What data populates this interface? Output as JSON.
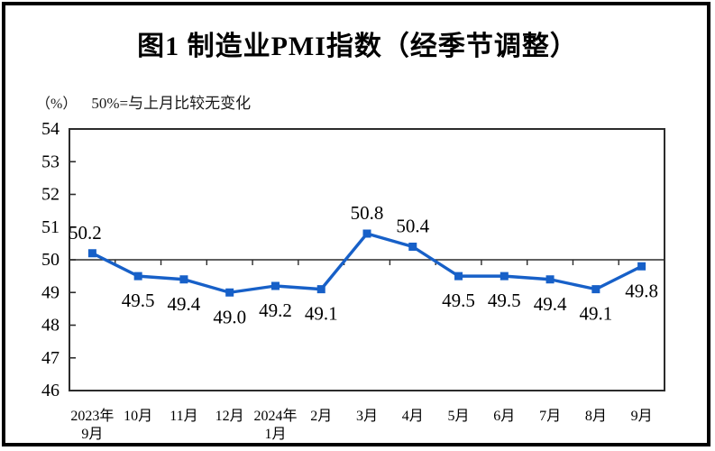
{
  "chart_data": {
    "type": "line",
    "title": "图1 制造业PMI指数（经季节调整）",
    "unit_label": "（%）",
    "subtitle": "50%=与上月比较无变化",
    "categories": [
      [
        "2023年",
        "9月"
      ],
      [
        "10月"
      ],
      [
        "11月"
      ],
      [
        "12月"
      ],
      [
        "2024年",
        "1月"
      ],
      [
        "2月"
      ],
      [
        "3月"
      ],
      [
        "4月"
      ],
      [
        "5月"
      ],
      [
        "6月"
      ],
      [
        "7月"
      ],
      [
        "8月"
      ],
      [
        "9月"
      ]
    ],
    "values": [
      50.2,
      49.5,
      49.4,
      49.0,
      49.2,
      49.1,
      50.8,
      50.4,
      49.5,
      49.5,
      49.4,
      49.1,
      49.8
    ],
    "value_label_side": [
      "above",
      "below",
      "below",
      "below",
      "below",
      "below",
      "above",
      "above",
      "below",
      "below",
      "below",
      "below",
      "below"
    ],
    "ylim": [
      46,
      54
    ],
    "ytick_interval": 1,
    "ytick_labels": [
      "46",
      "47",
      "48",
      "49",
      "50",
      "51",
      "52",
      "53",
      "54"
    ],
    "reference_line_y": 50,
    "grid": "off",
    "legend": "none",
    "marker": "square",
    "line_color": "#1760c8",
    "axis_color": "#2b2b2b",
    "text_color": "#000000"
  }
}
